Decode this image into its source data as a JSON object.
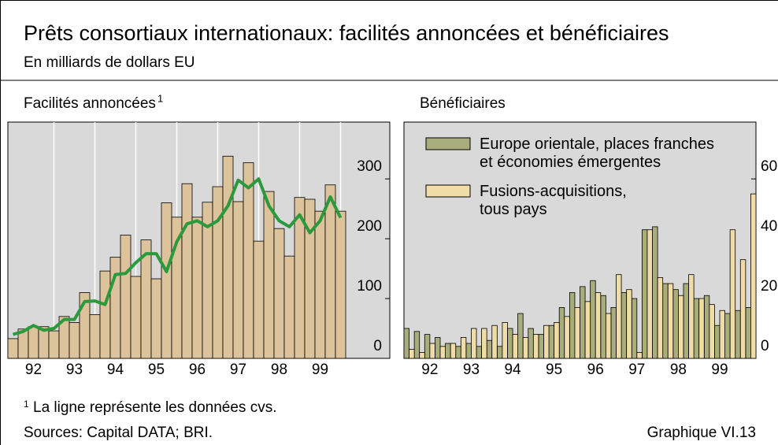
{
  "title": "Prêts consortiaux internationaux: facilités annoncées et bénéficiaires",
  "subtitle": "En milliards de dollars EU",
  "chart_data": [
    {
      "type": "bar",
      "title": "Facilités annoncées",
      "title_note": "1",
      "categories": [
        null,
        null,
        "92",
        null,
        null,
        null,
        "93",
        null,
        null,
        null,
        "94",
        null,
        null,
        null,
        "95",
        null,
        null,
        null,
        "96",
        null,
        null,
        null,
        "97",
        null,
        null,
        null,
        "98",
        null,
        null,
        null,
        "99",
        null,
        null
      ],
      "series": [
        {
          "type": "bar",
          "color": "#dcc39b",
          "values": [
            33,
            49,
            53,
            53,
            46,
            70,
            60,
            110,
            73,
            146,
            169,
            206,
            137,
            198,
            133,
            260,
            236,
            292,
            236,
            261,
            287,
            338,
            262,
            327,
            196,
            279,
            217,
            171,
            269,
            266,
            246,
            290,
            246
          ]
        },
        {
          "type": "line",
          "color": "#2a9a3c",
          "values": [
            40,
            45,
            55,
            47,
            50,
            65,
            65,
            95,
            96,
            90,
            140,
            142,
            160,
            175,
            175,
            145,
            195,
            225,
            230,
            220,
            230,
            255,
            298,
            285,
            300,
            255,
            230,
            220,
            240,
            210,
            230,
            270,
            235
          ]
        }
      ],
      "ylim": [
        0,
        395
      ],
      "yticks": [
        0,
        100,
        200,
        300
      ],
      "grid": true
    },
    {
      "type": "bar",
      "title": "Bénéficiaires",
      "categories": [
        null,
        null,
        "92",
        null,
        null,
        null,
        "93",
        null,
        null,
        null,
        "94",
        null,
        null,
        null,
        "95",
        null,
        null,
        null,
        "96",
        null,
        null,
        null,
        "97",
        null,
        null,
        null,
        "98",
        null,
        null,
        null,
        "99",
        null,
        null,
        null
      ],
      "series": [
        {
          "name": "Europe orientale, places franches\net économies émergentes",
          "color": "#a9ad7c",
          "values": [
            10,
            9,
            8,
            7,
            5,
            4,
            5,
            4,
            6,
            4,
            10,
            15,
            10,
            8,
            11,
            17,
            22,
            24,
            26,
            21,
            17,
            22,
            20,
            43,
            44,
            25,
            23,
            25,
            20,
            21,
            11,
            15,
            16,
            17
          ]
        },
        {
          "name": "Fusions-acquisitions,\ntous pays",
          "color": "#efdca6",
          "values": [
            3,
            2,
            5,
            4,
            5,
            7,
            10,
            10,
            11,
            12,
            8,
            7,
            8,
            11,
            12,
            14,
            17,
            19,
            22,
            15,
            28,
            23,
            2,
            43,
            27,
            25,
            21,
            28,
            20,
            18,
            16,
            43,
            33,
            55
          ]
        }
      ],
      "ylim": [
        0,
        79
      ],
      "yticks": [
        0,
        20,
        40,
        60
      ],
      "legend": "upper left"
    }
  ],
  "footnote": {
    "marker": "1",
    "text": "La ligne représente les données cvs."
  },
  "sources": "Sources: Capital DATA; BRI.",
  "chart_number": "Graphique VI.13"
}
